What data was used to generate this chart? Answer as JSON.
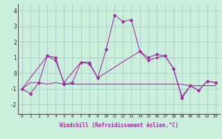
{
  "xlabel": "Windchill (Refroidissement éolien,°C)",
  "background_color": "#cceedd",
  "grid_color": "#aacccc",
  "line_color": "#993399",
  "x_ticks": [
    0,
    1,
    2,
    3,
    4,
    5,
    6,
    7,
    8,
    9,
    10,
    11,
    12,
    13,
    14,
    15,
    16,
    17,
    18,
    19,
    20,
    21,
    22,
    23
  ],
  "y_ticks": [
    -2,
    -1,
    0,
    1,
    2,
    3,
    4
  ],
  "ylim": [
    -2.6,
    4.4
  ],
  "xlim": [
    -0.5,
    23.5
  ],
  "series": [
    {
      "x": [
        0,
        1,
        2,
        3,
        4,
        5,
        6,
        7,
        8,
        9,
        10,
        11,
        12,
        13,
        14,
        15,
        16,
        17,
        18,
        19,
        20,
        21,
        22,
        23
      ],
      "y": [
        -1.0,
        -1.3,
        -0.6,
        1.1,
        1.0,
        -0.7,
        -0.6,
        0.7,
        0.6,
        -0.3,
        1.5,
        3.7,
        3.3,
        3.4,
        1.4,
        1.0,
        1.2,
        1.1,
        0.3,
        -1.6,
        -0.8,
        -1.1,
        -0.5,
        -0.6
      ]
    },
    {
      "x": [
        0,
        1,
        2,
        3,
        4,
        5,
        6,
        7,
        8,
        9,
        10,
        11,
        12,
        13,
        14,
        15,
        16,
        17,
        18,
        19,
        20,
        21,
        22,
        23
      ],
      "y": [
        -1.0,
        -0.6,
        -0.6,
        -0.7,
        -0.6,
        -0.7,
        -0.7,
        -0.7,
        -0.7,
        -0.7,
        -0.7,
        -0.7,
        -0.7,
        -0.7,
        -0.7,
        -0.7,
        -0.7,
        -0.7,
        -0.7,
        -0.7,
        -0.8,
        -0.8,
        -0.8,
        -0.8
      ]
    },
    {
      "x": [
        0,
        3,
        4,
        5,
        7,
        8,
        9,
        14,
        15,
        16,
        17,
        18,
        19,
        20,
        21,
        22,
        23
      ],
      "y": [
        -1.0,
        1.1,
        0.8,
        -0.6,
        0.7,
        0.7,
        -0.3,
        1.4,
        0.8,
        1.0,
        1.1,
        0.3,
        -1.5,
        -0.8,
        -1.1,
        -0.5,
        -0.6
      ]
    },
    {
      "x": [
        0,
        1,
        2,
        3,
        4,
        5,
        6,
        7,
        8,
        9,
        10,
        11,
        12,
        13,
        14,
        15,
        16,
        17,
        18,
        19,
        20,
        21,
        22,
        23
      ],
      "y": [
        -1.0,
        -0.7,
        -0.6,
        1.1,
        0.85,
        0.0,
        -0.1,
        0.65,
        0.6,
        0.3,
        1.5,
        3.7,
        3.3,
        3.4,
        1.4,
        1.0,
        1.2,
        1.1,
        0.3,
        -1.6,
        -0.8,
        -1.1,
        -0.5,
        -0.6
      ]
    }
  ]
}
